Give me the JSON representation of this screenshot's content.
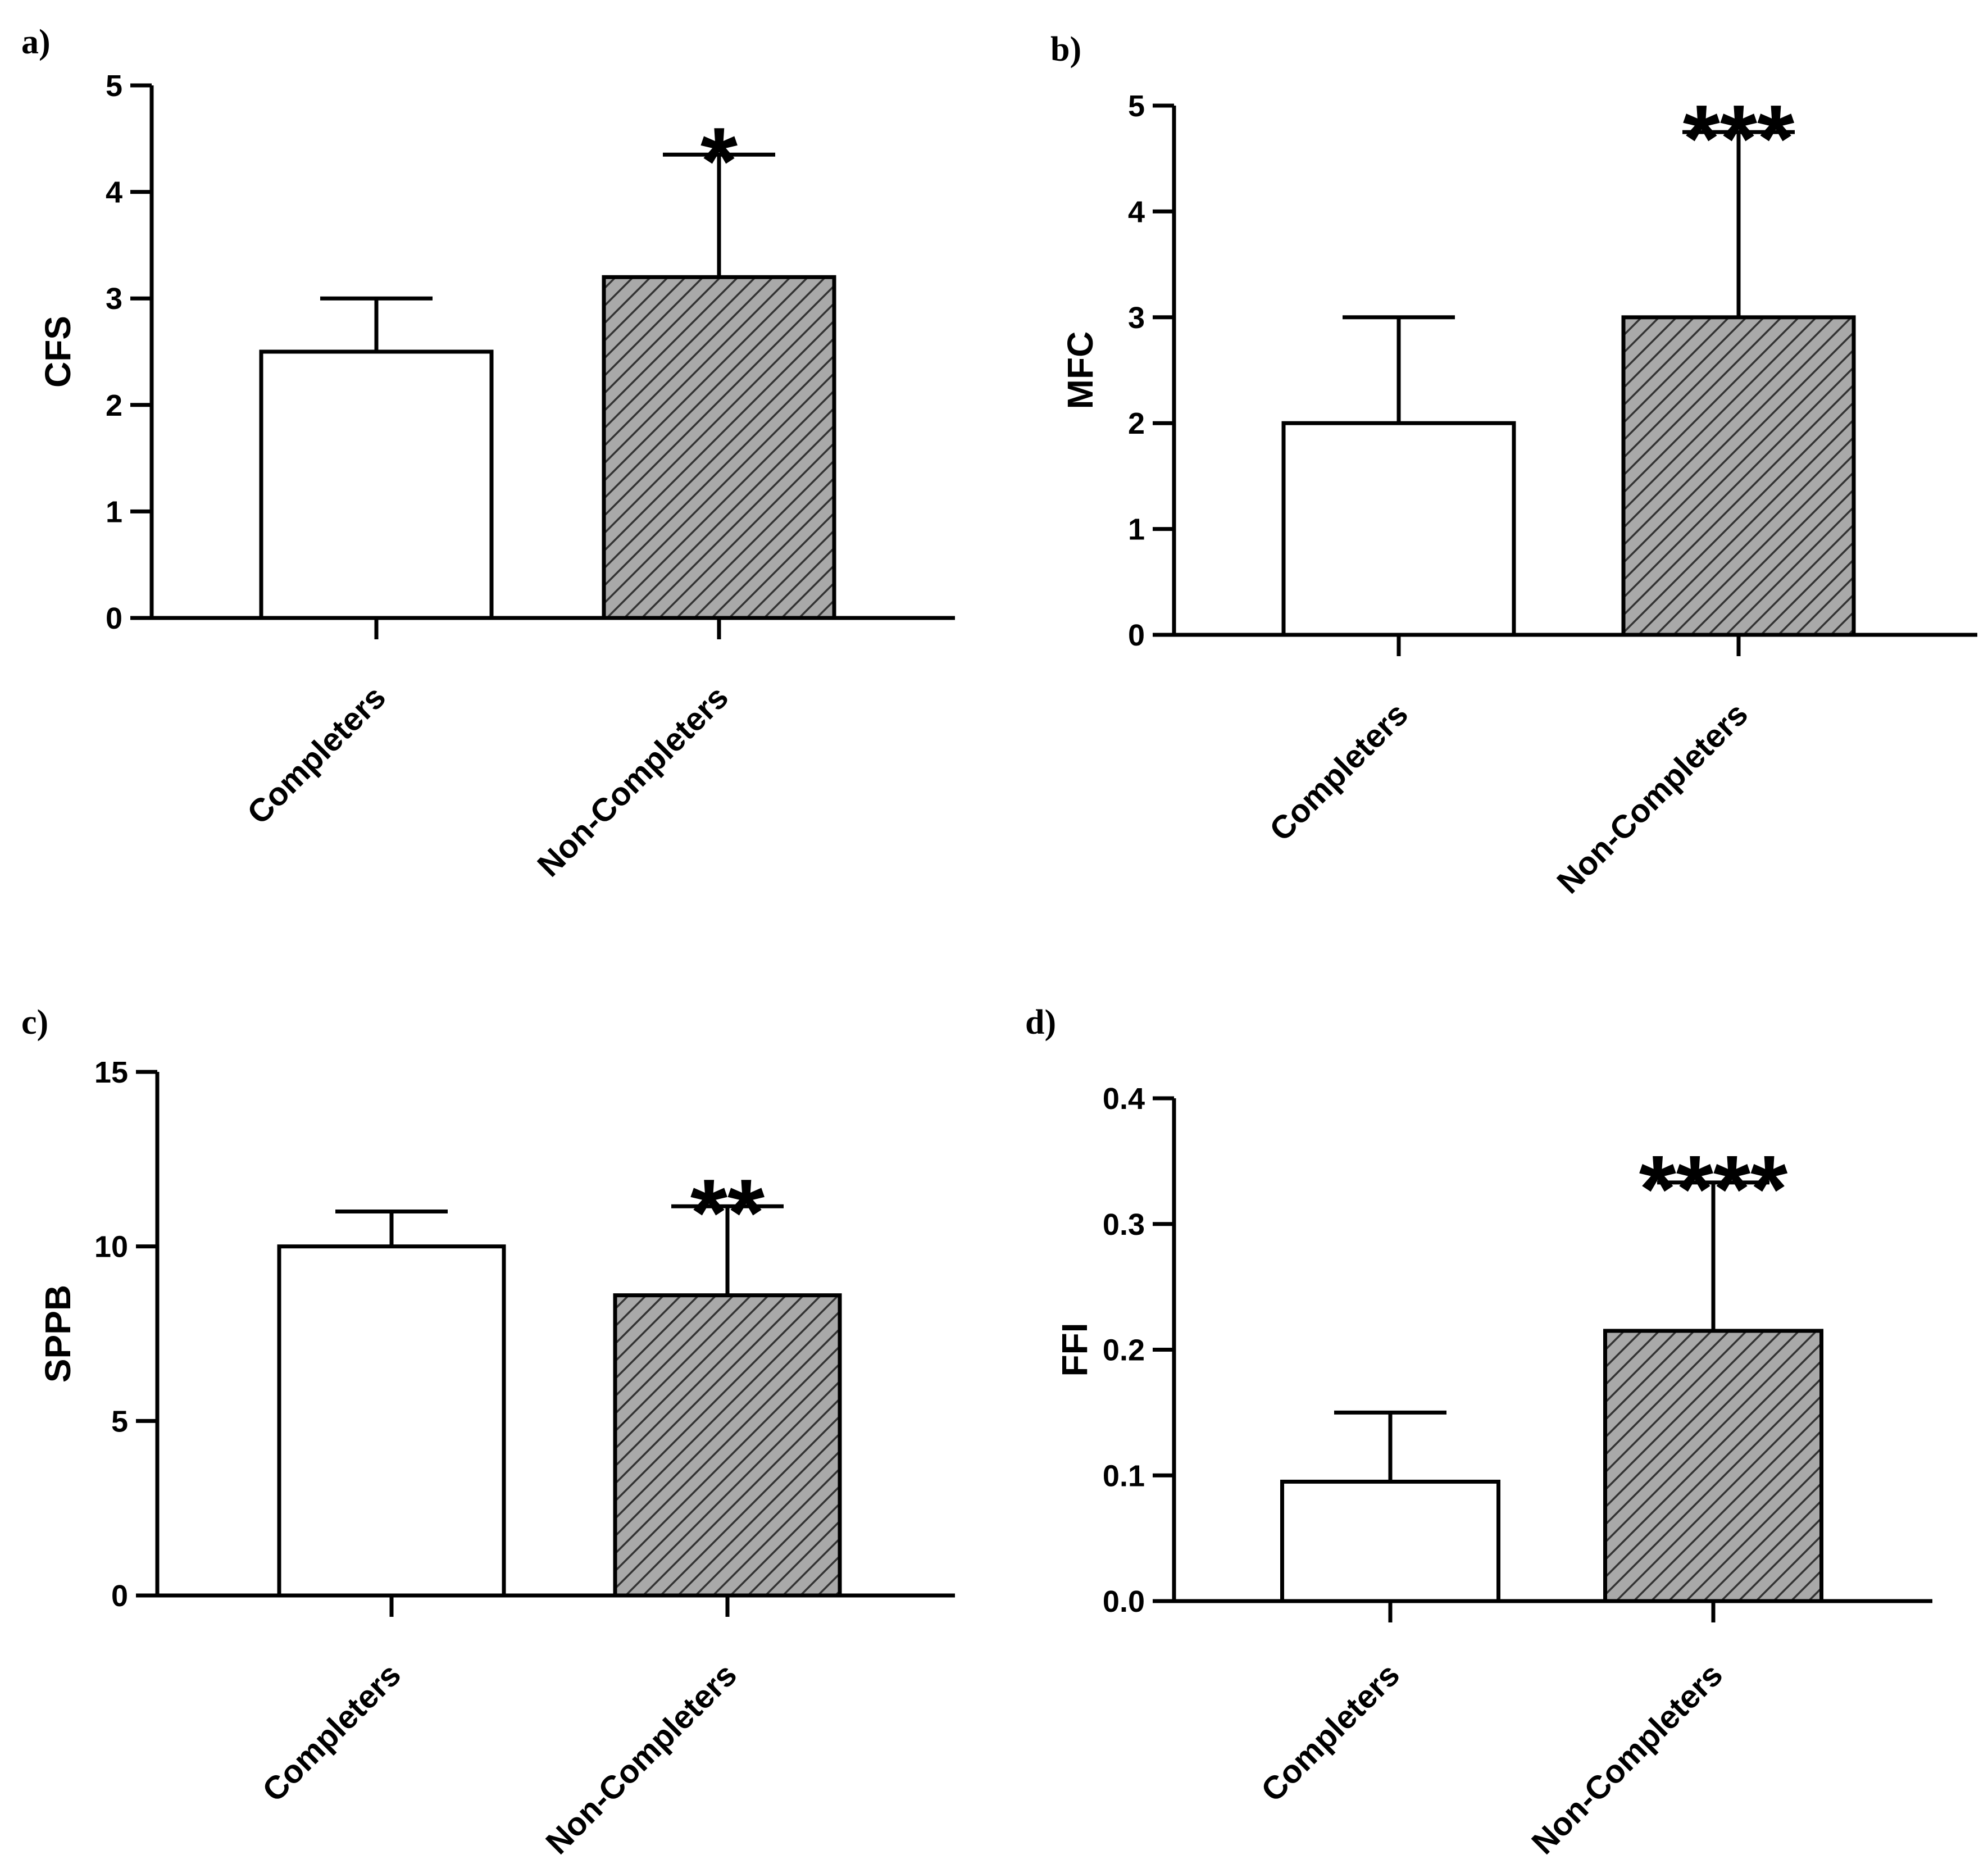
{
  "colors": {
    "axis": "#000000",
    "bar_open": "#ffffff",
    "bar_hatch_bg": "#a9a9a9",
    "hatch_line": "#333333"
  },
  "chart_data": [
    {
      "type": "bar",
      "panel": "a)",
      "ylabel": "CFS",
      "categories": [
        "Completers",
        "Non-Completers"
      ],
      "values": [
        2.5,
        3.2
      ],
      "errors": [
        0.5,
        1.15
      ],
      "significance": [
        "",
        "*"
      ],
      "styles": [
        "open",
        "hatched"
      ],
      "ylim": [
        0,
        5
      ],
      "ticks": [
        0,
        1,
        2,
        3,
        4,
        5
      ],
      "tick_labels": [
        "0",
        "1",
        "2",
        "3",
        "4",
        "5"
      ]
    },
    {
      "type": "bar",
      "panel": "b)",
      "ylabel": "MFC",
      "categories": [
        "Completers",
        "Non-Completers"
      ],
      "values": [
        2.0,
        3.0
      ],
      "errors": [
        1.0,
        1.75
      ],
      "significance": [
        "",
        "***"
      ],
      "styles": [
        "open",
        "hatched"
      ],
      "ylim": [
        0,
        5
      ],
      "ticks": [
        0,
        1,
        2,
        3,
        4,
        5
      ],
      "tick_labels": [
        "0",
        "1",
        "2",
        "3",
        "4",
        "5"
      ]
    },
    {
      "type": "bar",
      "panel": "c)",
      "ylabel": "SPPB",
      "categories": [
        "Completers",
        "Non-Completers"
      ],
      "values": [
        10.0,
        8.6
      ],
      "errors": [
        1.0,
        2.55
      ],
      "significance": [
        "",
        "**"
      ],
      "styles": [
        "open",
        "hatched"
      ],
      "ylim": [
        0,
        15
      ],
      "ticks": [
        0,
        5,
        10,
        15
      ],
      "tick_labels": [
        "0",
        "5",
        "10",
        "15"
      ]
    },
    {
      "type": "bar",
      "panel": "d)",
      "ylabel": "FFI",
      "categories": [
        "Completers",
        "Non-Completers"
      ],
      "values": [
        0.095,
        0.215
      ],
      "errors": [
        0.055,
        0.118
      ],
      "significance": [
        "",
        "****"
      ],
      "styles": [
        "open",
        "hatched"
      ],
      "ylim": [
        0,
        0.4
      ],
      "ticks": [
        0,
        0.1,
        0.2,
        0.3,
        0.4
      ],
      "tick_labels": [
        "0.0",
        "0.1",
        "0.2",
        "0.3",
        "0.4"
      ]
    }
  ]
}
